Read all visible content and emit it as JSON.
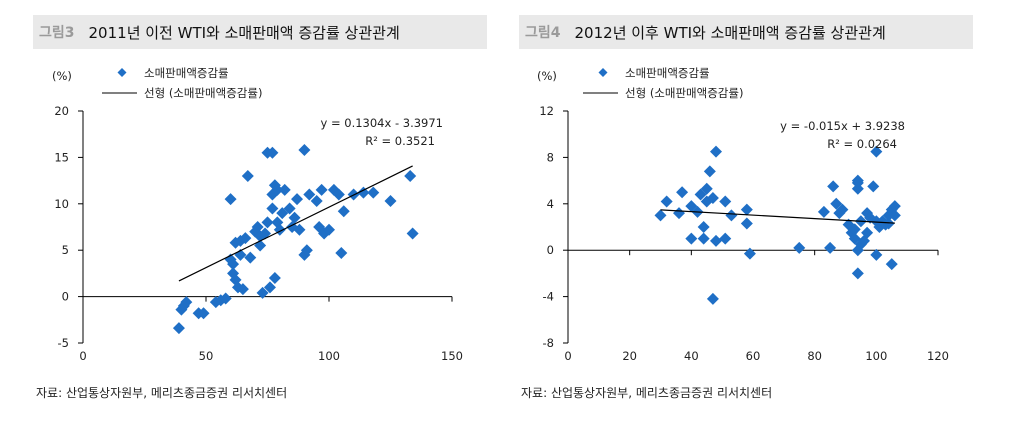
{
  "chart_data": [
    {
      "type": "scatter",
      "figure_label": "그림3",
      "title": "2011년 이전 WTI와 소매판매액 증감률 상관관계",
      "ylabel": "(%)",
      "legend": [
        "소매판매액증감률",
        "선형 (소매판매액증감률)"
      ],
      "xlim": [
        0,
        150
      ],
      "ylim": [
        -5,
        20
      ],
      "xticks": [
        0,
        50,
        100,
        150
      ],
      "yticks": [
        -5,
        0,
        5,
        10,
        15,
        20
      ],
      "trend": {
        "slope": 0.1304,
        "intercept": -3.3971,
        "x_range": [
          39,
          134
        ],
        "equation": "y = 0.1304x - 3.3971",
        "r2": "R² = 0.3521"
      },
      "color": "#1f6fc6",
      "points": [
        [
          39,
          -3.4
        ],
        [
          40,
          -1.4
        ],
        [
          41,
          -1
        ],
        [
          42,
          -0.6
        ],
        [
          47,
          -1.8
        ],
        [
          49,
          -1.8
        ],
        [
          54,
          -0.6
        ],
        [
          56,
          -0.4
        ],
        [
          58,
          -0.2
        ],
        [
          60,
          10.5
        ],
        [
          60,
          4
        ],
        [
          61,
          2.5
        ],
        [
          61,
          3.5
        ],
        [
          62,
          1.8
        ],
        [
          62,
          5.8
        ],
        [
          63,
          1
        ],
        [
          64,
          6
        ],
        [
          64,
          4.5
        ],
        [
          65,
          0.8
        ],
        [
          66,
          6.3
        ],
        [
          67,
          13
        ],
        [
          68,
          4.2
        ],
        [
          70,
          7
        ],
        [
          71,
          7.5
        ],
        [
          72,
          6.5
        ],
        [
          72,
          5.5
        ],
        [
          73,
          0.4
        ],
        [
          74,
          6.8
        ],
        [
          75,
          8
        ],
        [
          75,
          15.5
        ],
        [
          76,
          1
        ],
        [
          77,
          15.5
        ],
        [
          77,
          11
        ],
        [
          77,
          9.5
        ],
        [
          78,
          12
        ],
        [
          78,
          2
        ],
        [
          79,
          11.5
        ],
        [
          79,
          8
        ],
        [
          80,
          7.2
        ],
        [
          81,
          9
        ],
        [
          82,
          11.5
        ],
        [
          84,
          9.5
        ],
        [
          85,
          7.5
        ],
        [
          86,
          8.5
        ],
        [
          87,
          10.5
        ],
        [
          88,
          7.2
        ],
        [
          90,
          15.8
        ],
        [
          90,
          4.5
        ],
        [
          91,
          5
        ],
        [
          92,
          11
        ],
        [
          95,
          10.3
        ],
        [
          96,
          7.5
        ],
        [
          97,
          11.5
        ],
        [
          98,
          6.8
        ],
        [
          100,
          7.2
        ],
        [
          102,
          11.5
        ],
        [
          104,
          11
        ],
        [
          105,
          4.7
        ],
        [
          106,
          9.2
        ],
        [
          110,
          11
        ],
        [
          114,
          11.2
        ],
        [
          118,
          11.2
        ],
        [
          125,
          10.3
        ],
        [
          133,
          13
        ],
        [
          134,
          6.8
        ]
      ],
      "source": "자료: 산업통상자원부, 메리츠종금증권 리서치센터"
    },
    {
      "type": "scatter",
      "figure_label": "그림4",
      "title": "2012년 이후 WTI와 소매판매액 증감률 상관관계",
      "ylabel": "(%)",
      "legend": [
        "소매판매액증감률",
        "선형 (소매판매액증감률)"
      ],
      "xlim": [
        0,
        120
      ],
      "ylim": [
        -8,
        12
      ],
      "xticks": [
        0,
        20,
        40,
        60,
        80,
        100,
        120
      ],
      "yticks": [
        -8,
        -4,
        0,
        4,
        8,
        12
      ],
      "trend": {
        "slope": -0.015,
        "intercept": 3.9238,
        "x_range": [
          30,
          106
        ],
        "equation": "y = -0.015x + 3.9238",
        "r2": "R² = 0.0264"
      },
      "color": "#1f6fc6",
      "points": [
        [
          30,
          3
        ],
        [
          32,
          4.2
        ],
        [
          36,
          3.2
        ],
        [
          37,
          5
        ],
        [
          40,
          3.8
        ],
        [
          40,
          1
        ],
        [
          42,
          3.3
        ],
        [
          43,
          4.8
        ],
        [
          44,
          1
        ],
        [
          44,
          2
        ],
        [
          45,
          5.3
        ],
        [
          45,
          4.2
        ],
        [
          46,
          6.8
        ],
        [
          47,
          4.5
        ],
        [
          47,
          -4.2
        ],
        [
          48,
          8.5
        ],
        [
          48,
          0.8
        ],
        [
          51,
          4.2
        ],
        [
          51,
          1
        ],
        [
          53,
          3
        ],
        [
          58,
          3.5
        ],
        [
          58,
          2.3
        ],
        [
          59,
          -0.3
        ],
        [
          75,
          0.2
        ],
        [
          83,
          3.3
        ],
        [
          85,
          0.2
        ],
        [
          86,
          5.5
        ],
        [
          87,
          4
        ],
        [
          88,
          3.2
        ],
        [
          89,
          3.5
        ],
        [
          91,
          2.2
        ],
        [
          92,
          1.5
        ],
        [
          93,
          1
        ],
        [
          93,
          1.8
        ],
        [
          94,
          5.3
        ],
        [
          94,
          6
        ],
        [
          94,
          5.8
        ],
        [
          94,
          0
        ],
        [
          94,
          -2
        ],
        [
          95,
          2.5
        ],
        [
          95,
          0.5
        ],
        [
          96,
          0.8
        ],
        [
          97,
          1.5
        ],
        [
          97,
          3.2
        ],
        [
          98,
          2.8
        ],
        [
          99,
          5.5
        ],
        [
          100,
          -0.4
        ],
        [
          100,
          8.5
        ],
        [
          100,
          2.5
        ],
        [
          101,
          2
        ],
        [
          102,
          2.5
        ],
        [
          103,
          2.2
        ],
        [
          104,
          3
        ],
        [
          105,
          3.5
        ],
        [
          105,
          -1.2
        ],
        [
          106,
          3
        ],
        [
          106,
          3.8
        ],
        [
          104,
          2.3
        ]
      ],
      "source": "자료: 산업통상자원부, 메리츠종금증권 리서치센터"
    }
  ]
}
